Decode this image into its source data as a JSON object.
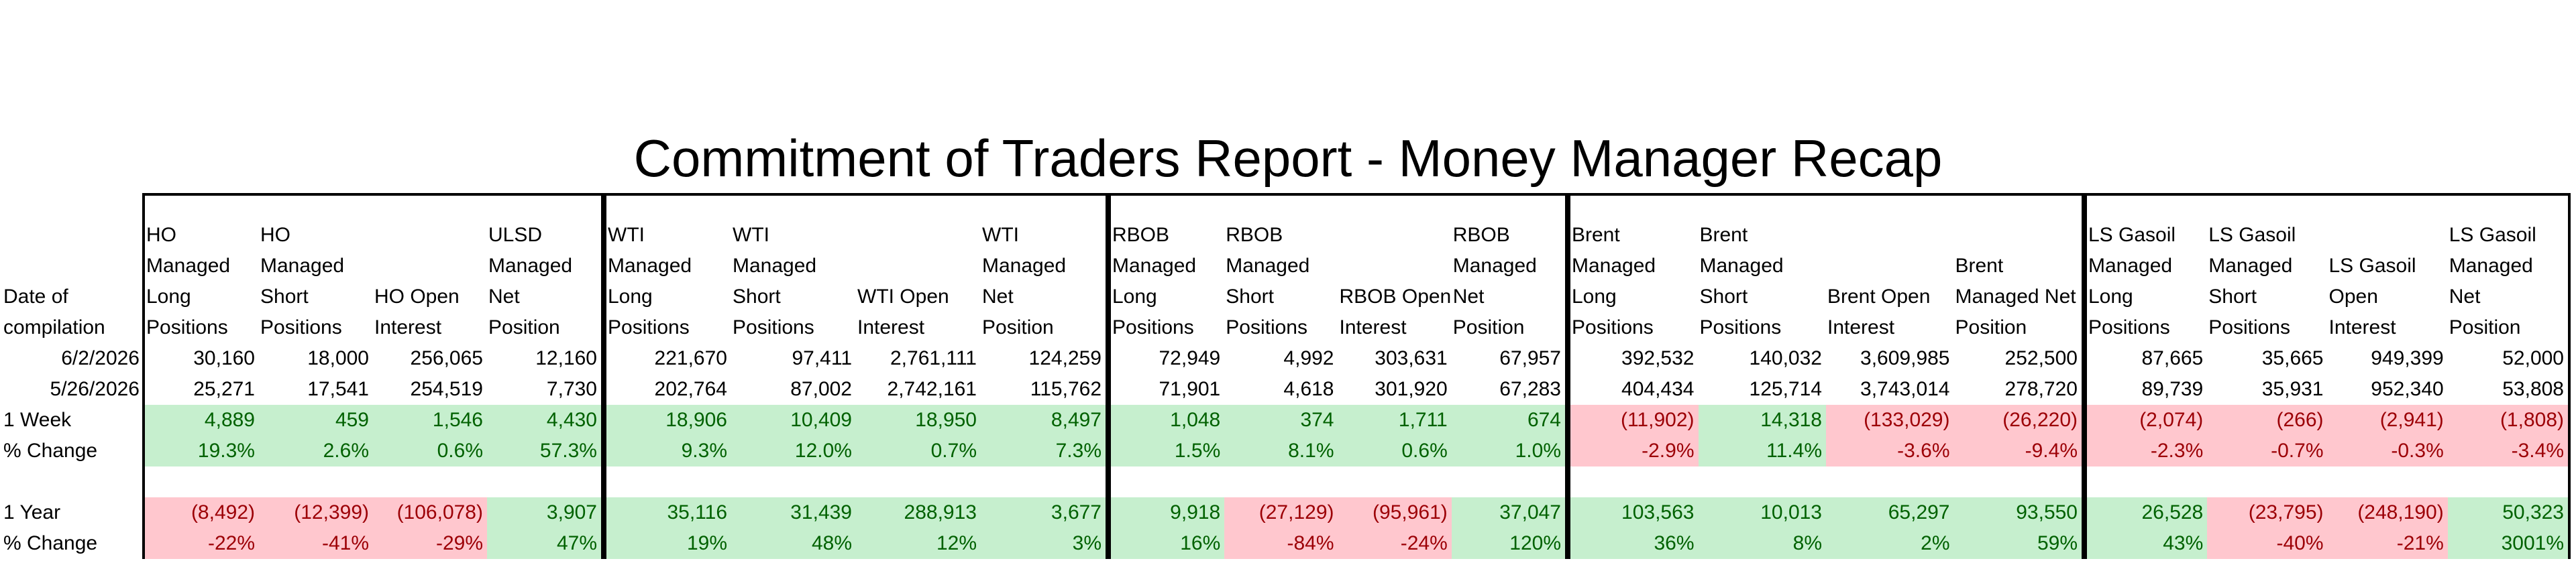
{
  "title": "Commitment of Traders Report - Money Manager Recap",
  "row_labels": [
    "Date of",
    "compilation",
    "6/2/2026",
    "5/26/2026",
    "1 Week",
    "% Change",
    "1 Year",
    "% Change"
  ],
  "colors": {
    "positive_bg": "#c6efce",
    "positive_fg": "#006100",
    "negative_bg": "#ffc7ce",
    "negative_fg": "#9c0006"
  },
  "groups": [
    {
      "columns": [
        {
          "header": [
            "HO",
            "Managed",
            "Long",
            "Positions"
          ],
          "values": [
            "30,160",
            "25,271",
            "4,889",
            "19.3%",
            "(8,492)",
            "-22%"
          ]
        },
        {
          "header": [
            "HO",
            "Managed",
            "Short",
            "Positions"
          ],
          "values": [
            "18,000",
            "17,541",
            "459",
            "2.6%",
            "(12,399)",
            "-41%"
          ]
        },
        {
          "header": [
            "HO Open",
            "Interest"
          ],
          "values": [
            "256,065",
            "254,519",
            "1,546",
            "0.6%",
            "(106,078)",
            "-29%"
          ]
        },
        {
          "header": [
            "ULSD",
            "Managed",
            "Net",
            "Position"
          ],
          "values": [
            "12,160",
            "7,730",
            "4,430",
            "57.3%",
            "3,907",
            "47%"
          ]
        }
      ]
    },
    {
      "columns": [
        {
          "header": [
            "WTI",
            "Managed",
            "Long",
            "Positions"
          ],
          "values": [
            "221,670",
            "202,764",
            "18,906",
            "9.3%",
            "35,116",
            "19%"
          ]
        },
        {
          "header": [
            "WTI",
            "Managed",
            "Short",
            "Positions"
          ],
          "values": [
            "97,411",
            "87,002",
            "10,409",
            "12.0%",
            "31,439",
            "48%"
          ]
        },
        {
          "header": [
            "WTI Open",
            "Interest"
          ],
          "values": [
            "2,761,111",
            "2,742,161",
            "18,950",
            "0.7%",
            "288,913",
            "12%"
          ]
        },
        {
          "header": [
            "WTI",
            "Managed",
            "Net",
            "Position"
          ],
          "values": [
            "124,259",
            "115,762",
            "8,497",
            "7.3%",
            "3,677",
            "3%"
          ]
        }
      ]
    },
    {
      "columns": [
        {
          "header": [
            "RBOB",
            "Managed",
            "Long",
            "Positions"
          ],
          "values": [
            "72,949",
            "71,901",
            "1,048",
            "1.5%",
            "9,918",
            "16%"
          ]
        },
        {
          "header": [
            "RBOB",
            "Managed",
            "Short",
            "Positions"
          ],
          "values": [
            "4,992",
            "4,618",
            "374",
            "8.1%",
            "(27,129)",
            "-84%"
          ]
        },
        {
          "header": [
            "RBOB Open",
            "Interest"
          ],
          "values": [
            "303,631",
            "301,920",
            "1,711",
            "0.6%",
            "(95,961)",
            "-24%"
          ]
        },
        {
          "header": [
            "RBOB",
            "Managed",
            "Net",
            "Position"
          ],
          "values": [
            "67,957",
            "67,283",
            "674",
            "1.0%",
            "37,047",
            "120%"
          ]
        }
      ]
    },
    {
      "columns": [
        {
          "header": [
            "Brent",
            "Managed",
            "Long",
            "Positions"
          ],
          "values": [
            "392,532",
            "404,434",
            "(11,902)",
            "-2.9%",
            "103,563",
            "36%"
          ]
        },
        {
          "header": [
            "Brent",
            "Managed",
            "Short",
            "Positions"
          ],
          "values": [
            "140,032",
            "125,714",
            "14,318",
            "11.4%",
            "10,013",
            "8%"
          ]
        },
        {
          "header": [
            "Brent Open",
            "Interest"
          ],
          "values": [
            "3,609,985",
            "3,743,014",
            "(133,029)",
            "-3.6%",
            "65,297",
            "2%"
          ]
        },
        {
          "header": [
            "Brent",
            "Managed Net",
            "Position"
          ],
          "values": [
            "252,500",
            "278,720",
            "(26,220)",
            "-9.4%",
            "93,550",
            "59%"
          ]
        }
      ]
    },
    {
      "columns": [
        {
          "header": [
            "LS Gasoil",
            "Managed",
            "Long",
            "Positions"
          ],
          "values": [
            "87,665",
            "89,739",
            "(2,074)",
            "-2.3%",
            "26,528",
            "43%"
          ]
        },
        {
          "header": [
            "LS Gasoil",
            "Managed",
            "Short",
            "Positions"
          ],
          "values": [
            "35,665",
            "35,931",
            "(266)",
            "-0.7%",
            "(23,795)",
            "-40%"
          ]
        },
        {
          "header": [
            "LS Gasoil",
            "Open",
            "Interest"
          ],
          "values": [
            "949,399",
            "952,340",
            "(2,941)",
            "-0.3%",
            "(248,190)",
            "-21%"
          ]
        },
        {
          "header": [
            "LS Gasoil",
            "Managed",
            "Net",
            "Position"
          ],
          "values": [
            "52,000",
            "53,808",
            "(1,808)",
            "-3.4%",
            "50,323",
            "3001%"
          ]
        }
      ]
    }
  ]
}
